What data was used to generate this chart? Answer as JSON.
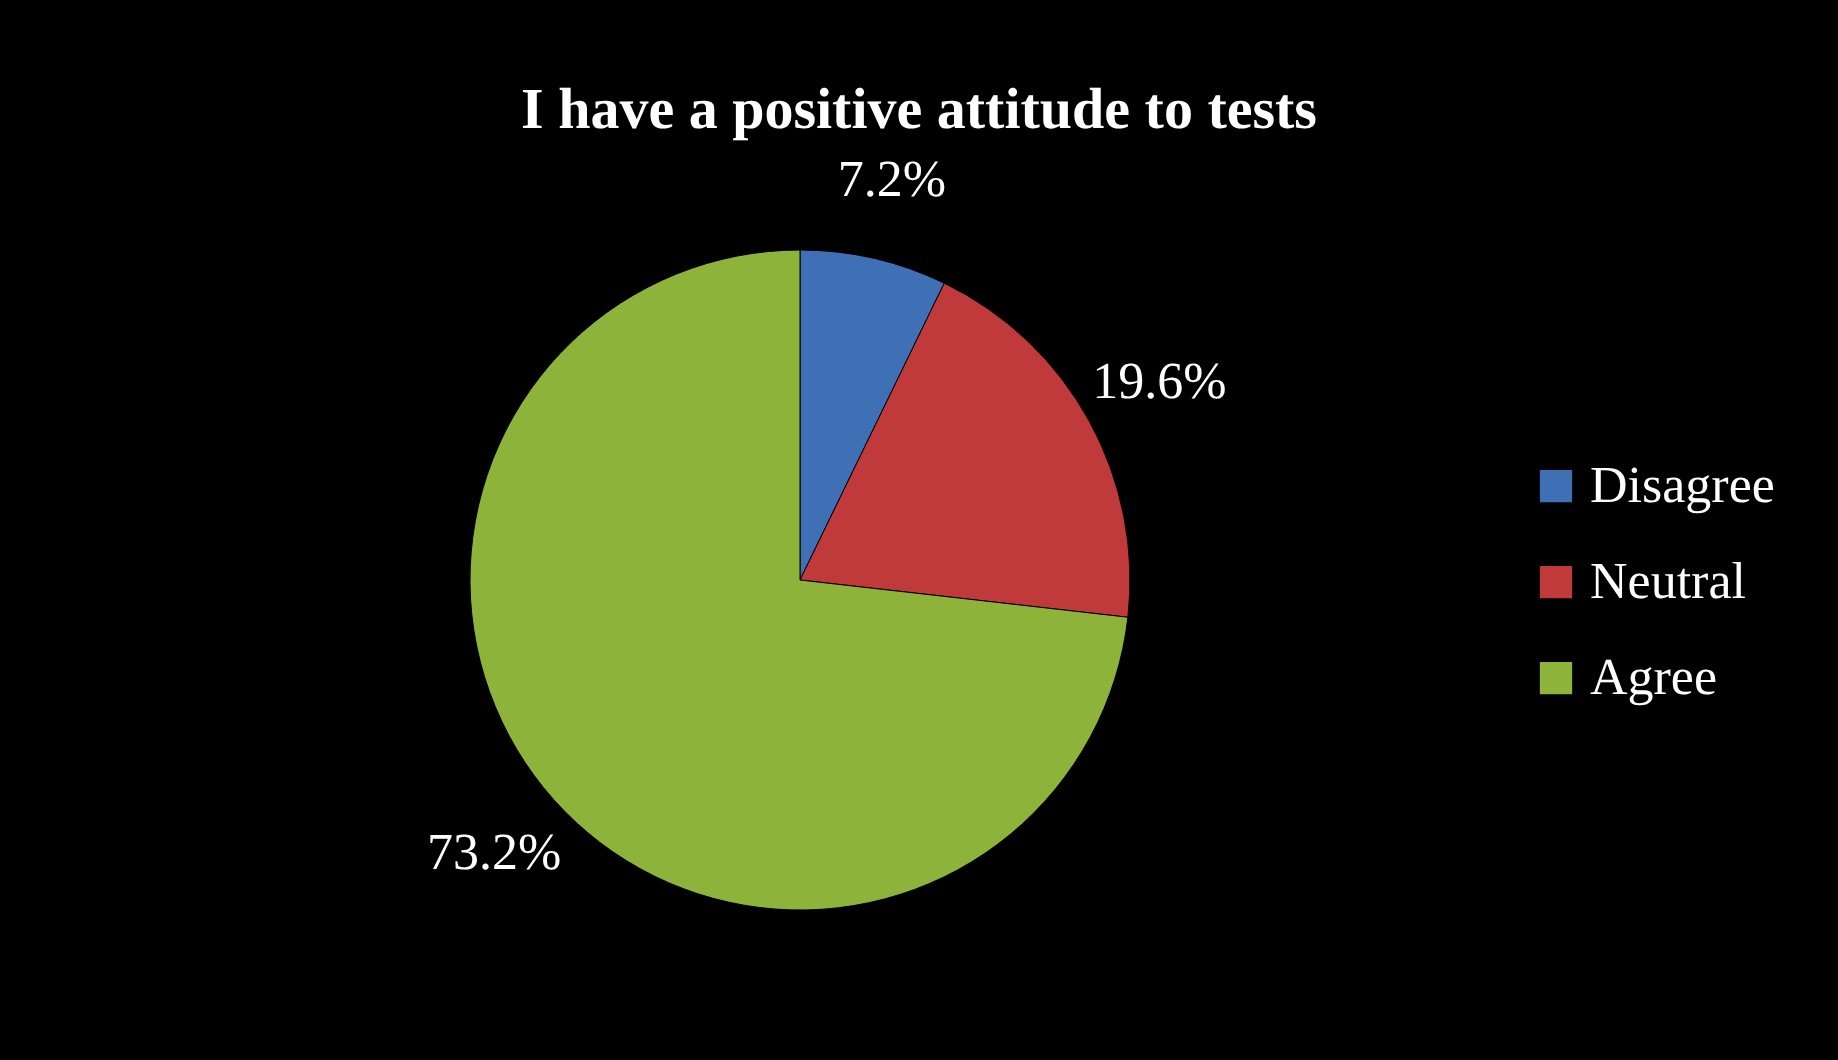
{
  "chart_data": {
    "type": "pie",
    "title": "I have a positive attitude to tests",
    "categories": [
      "Disagree",
      "Neutral",
      "Agree"
    ],
    "values": [
      7.2,
      19.6,
      73.2
    ],
    "value_labels": [
      "7.2%",
      "19.6%",
      "73.2%"
    ],
    "colors": [
      "#3f6fb5",
      "#c0393b",
      "#8db33a"
    ],
    "legend": "right"
  }
}
